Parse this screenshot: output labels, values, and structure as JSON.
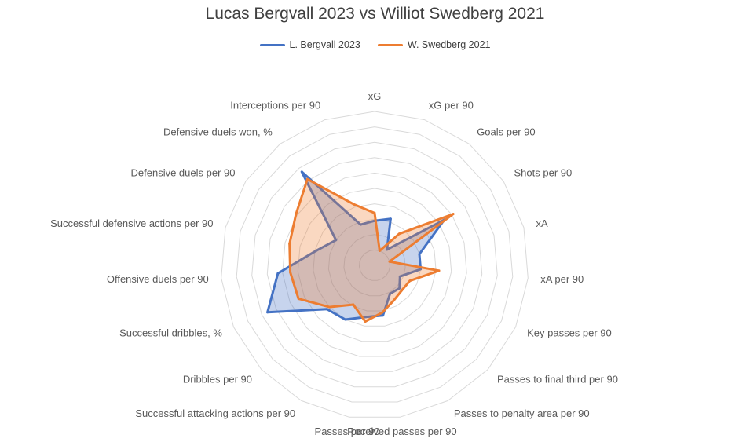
{
  "chart_data": {
    "type": "radar",
    "title": "Lucas Bergvall 2023 vs Williot Swedberg 2021",
    "legend_position": "top",
    "grid": true,
    "rlim": [
      0,
      10
    ],
    "categories": [
      "xG",
      "xG per 90",
      "Goals per 90",
      "Shots per 90",
      "xA",
      "xA per 90",
      "Key passes per 90",
      "Passes to final third per 90",
      "Passes to penalty area per 90",
      "Received passes per 90",
      "Passes per 90",
      "Successful attacking actions per 90",
      "Dribbles per 90",
      "Successful dribbles, %",
      "Offensive duels per 90",
      "Successful defensive actions per 90",
      "Defensive duels per 90",
      "Defensive duels won, %",
      "Interceptions per 90"
    ],
    "series": [
      {
        "name": "L. Bergvall 2023",
        "color": "#4472C4",
        "fill": "rgba(68,114,196,0.30)",
        "values": [
          2.9,
          3.2,
          1.3,
          5.4,
          3.0,
          3.0,
          1.8,
          2.2,
          2.1,
          3.3,
          3.4,
          4.0,
          4.2,
          7.6,
          6.3,
          3.9,
          3.0,
          7.7,
          2.8
        ]
      },
      {
        "name": "W. Swedberg 2021",
        "color": "#ED7D31",
        "fill": "rgba(237,125,49,0.30)",
        "values": [
          3.4,
          1.0,
          2.6,
          6.1,
          1.0,
          4.2,
          2.5,
          2.4,
          2.6,
          3.1,
          3.7,
          2.9,
          4.0,
          5.4,
          5.5,
          5.7,
          6.1,
          7.1,
          4.2
        ]
      }
    ]
  }
}
